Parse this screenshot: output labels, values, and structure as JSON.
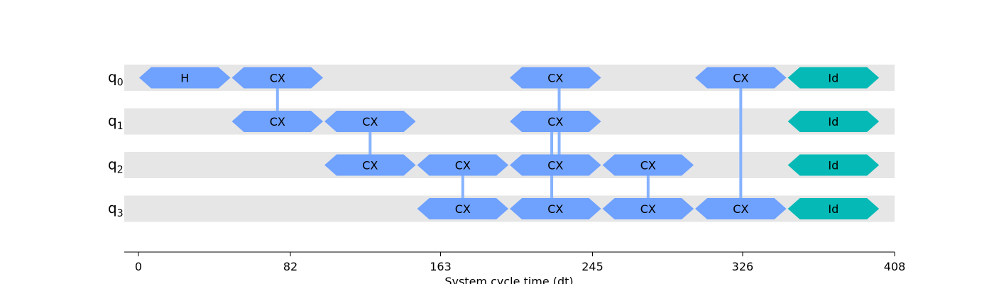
{
  "chart_data": {
    "type": "timeline",
    "xlabel": "System cycle time (dt)",
    "x_range": [
      0,
      408
    ],
    "x_ticks": [
      0,
      82,
      163,
      245,
      326,
      408
    ],
    "colors": {
      "gate": "#6fa1ff",
      "identity": "#05bab6",
      "link": "#86b2ff",
      "lane": "#e6e6e6"
    },
    "qubits": [
      {
        "base": "q",
        "index": "0"
      },
      {
        "base": "q",
        "index": "1"
      },
      {
        "base": "q",
        "index": "2"
      },
      {
        "base": "q",
        "index": "3"
      }
    ],
    "gates": [
      {
        "q": 0,
        "t0": 0,
        "t1": 50,
        "label": "H",
        "kind": "gate"
      },
      {
        "q": 0,
        "t0": 50,
        "t1": 100,
        "label": "CX",
        "kind": "gate"
      },
      {
        "q": 0,
        "t0": 200,
        "t1": 250,
        "label": "CX",
        "kind": "gate"
      },
      {
        "q": 0,
        "t0": 300,
        "t1": 350,
        "label": "CX",
        "kind": "gate"
      },
      {
        "q": 0,
        "t0": 350,
        "t1": 400,
        "label": "Id",
        "kind": "identity"
      },
      {
        "q": 1,
        "t0": 50,
        "t1": 100,
        "label": "CX",
        "kind": "gate"
      },
      {
        "q": 1,
        "t0": 100,
        "t1": 150,
        "label": "CX",
        "kind": "gate"
      },
      {
        "q": 1,
        "t0": 200,
        "t1": 250,
        "label": "CX",
        "kind": "gate"
      },
      {
        "q": 1,
        "t0": 350,
        "t1": 400,
        "label": "Id",
        "kind": "identity"
      },
      {
        "q": 2,
        "t0": 100,
        "t1": 150,
        "label": "CX",
        "kind": "gate"
      },
      {
        "q": 2,
        "t0": 150,
        "t1": 200,
        "label": "CX",
        "kind": "gate"
      },
      {
        "q": 2,
        "t0": 200,
        "t1": 250,
        "label": "CX",
        "kind": "gate"
      },
      {
        "q": 2,
        "t0": 250,
        "t1": 300,
        "label": "CX",
        "kind": "gate"
      },
      {
        "q": 2,
        "t0": 350,
        "t1": 400,
        "label": "Id",
        "kind": "identity"
      },
      {
        "q": 3,
        "t0": 150,
        "t1": 200,
        "label": "CX",
        "kind": "gate"
      },
      {
        "q": 3,
        "t0": 200,
        "t1": 250,
        "label": "CX",
        "kind": "gate"
      },
      {
        "q": 3,
        "t0": 250,
        "t1": 300,
        "label": "CX",
        "kind": "gate"
      },
      {
        "q": 3,
        "t0": 300,
        "t1": 350,
        "label": "CX",
        "kind": "gate"
      },
      {
        "q": 3,
        "t0": 350,
        "t1": 400,
        "label": "Id",
        "kind": "identity"
      }
    ],
    "links": [
      {
        "t": 75,
        "from": 0,
        "to": 1
      },
      {
        "t": 125,
        "from": 1,
        "to": 2
      },
      {
        "t": 175,
        "from": 2,
        "to": 3
      },
      {
        "t": 227,
        "from": 0,
        "to": 2
      },
      {
        "t": 223,
        "from": 1,
        "to": 3
      },
      {
        "t": 275,
        "from": 2,
        "to": 3
      },
      {
        "t": 325,
        "from": 0,
        "to": 3
      }
    ]
  }
}
